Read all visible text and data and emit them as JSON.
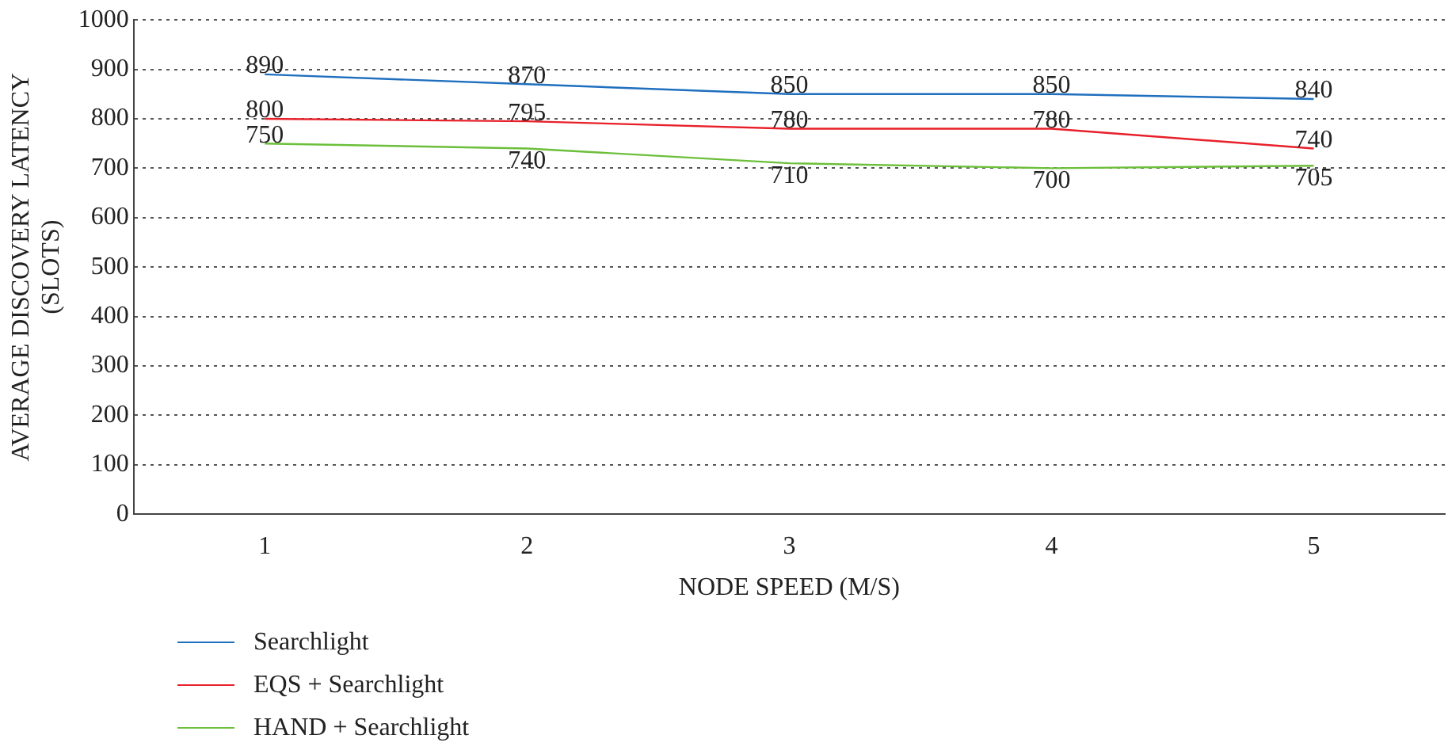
{
  "chart_data": {
    "type": "line",
    "xlabel": "NODE SPEED (M/S)",
    "ylabel": "AVERAGE DISCOVERY LATENCY (SLOTS)",
    "categories": [
      "1",
      "2",
      "3",
      "4",
      "5"
    ],
    "series": [
      {
        "name": "Searchlight",
        "color": "#1f6fbf",
        "values": [
          890,
          870,
          850,
          850,
          840
        ]
      },
      {
        "name": "EQS + Searchlight",
        "color": "#e8202a",
        "values": [
          800,
          795,
          780,
          780,
          740
        ]
      },
      {
        "name": "HAND + Searchlight",
        "color": "#6cbf3a",
        "values": [
          750,
          740,
          710,
          700,
          705
        ]
      }
    ],
    "ylim": [
      0,
      1000
    ],
    "yticks": [
      0,
      100,
      200,
      300,
      400,
      500,
      600,
      700,
      800,
      900,
      1000
    ],
    "grid": "y",
    "legend": "bottom left",
    "data_labels": true,
    "marker": "none",
    "line_style": "solid"
  }
}
